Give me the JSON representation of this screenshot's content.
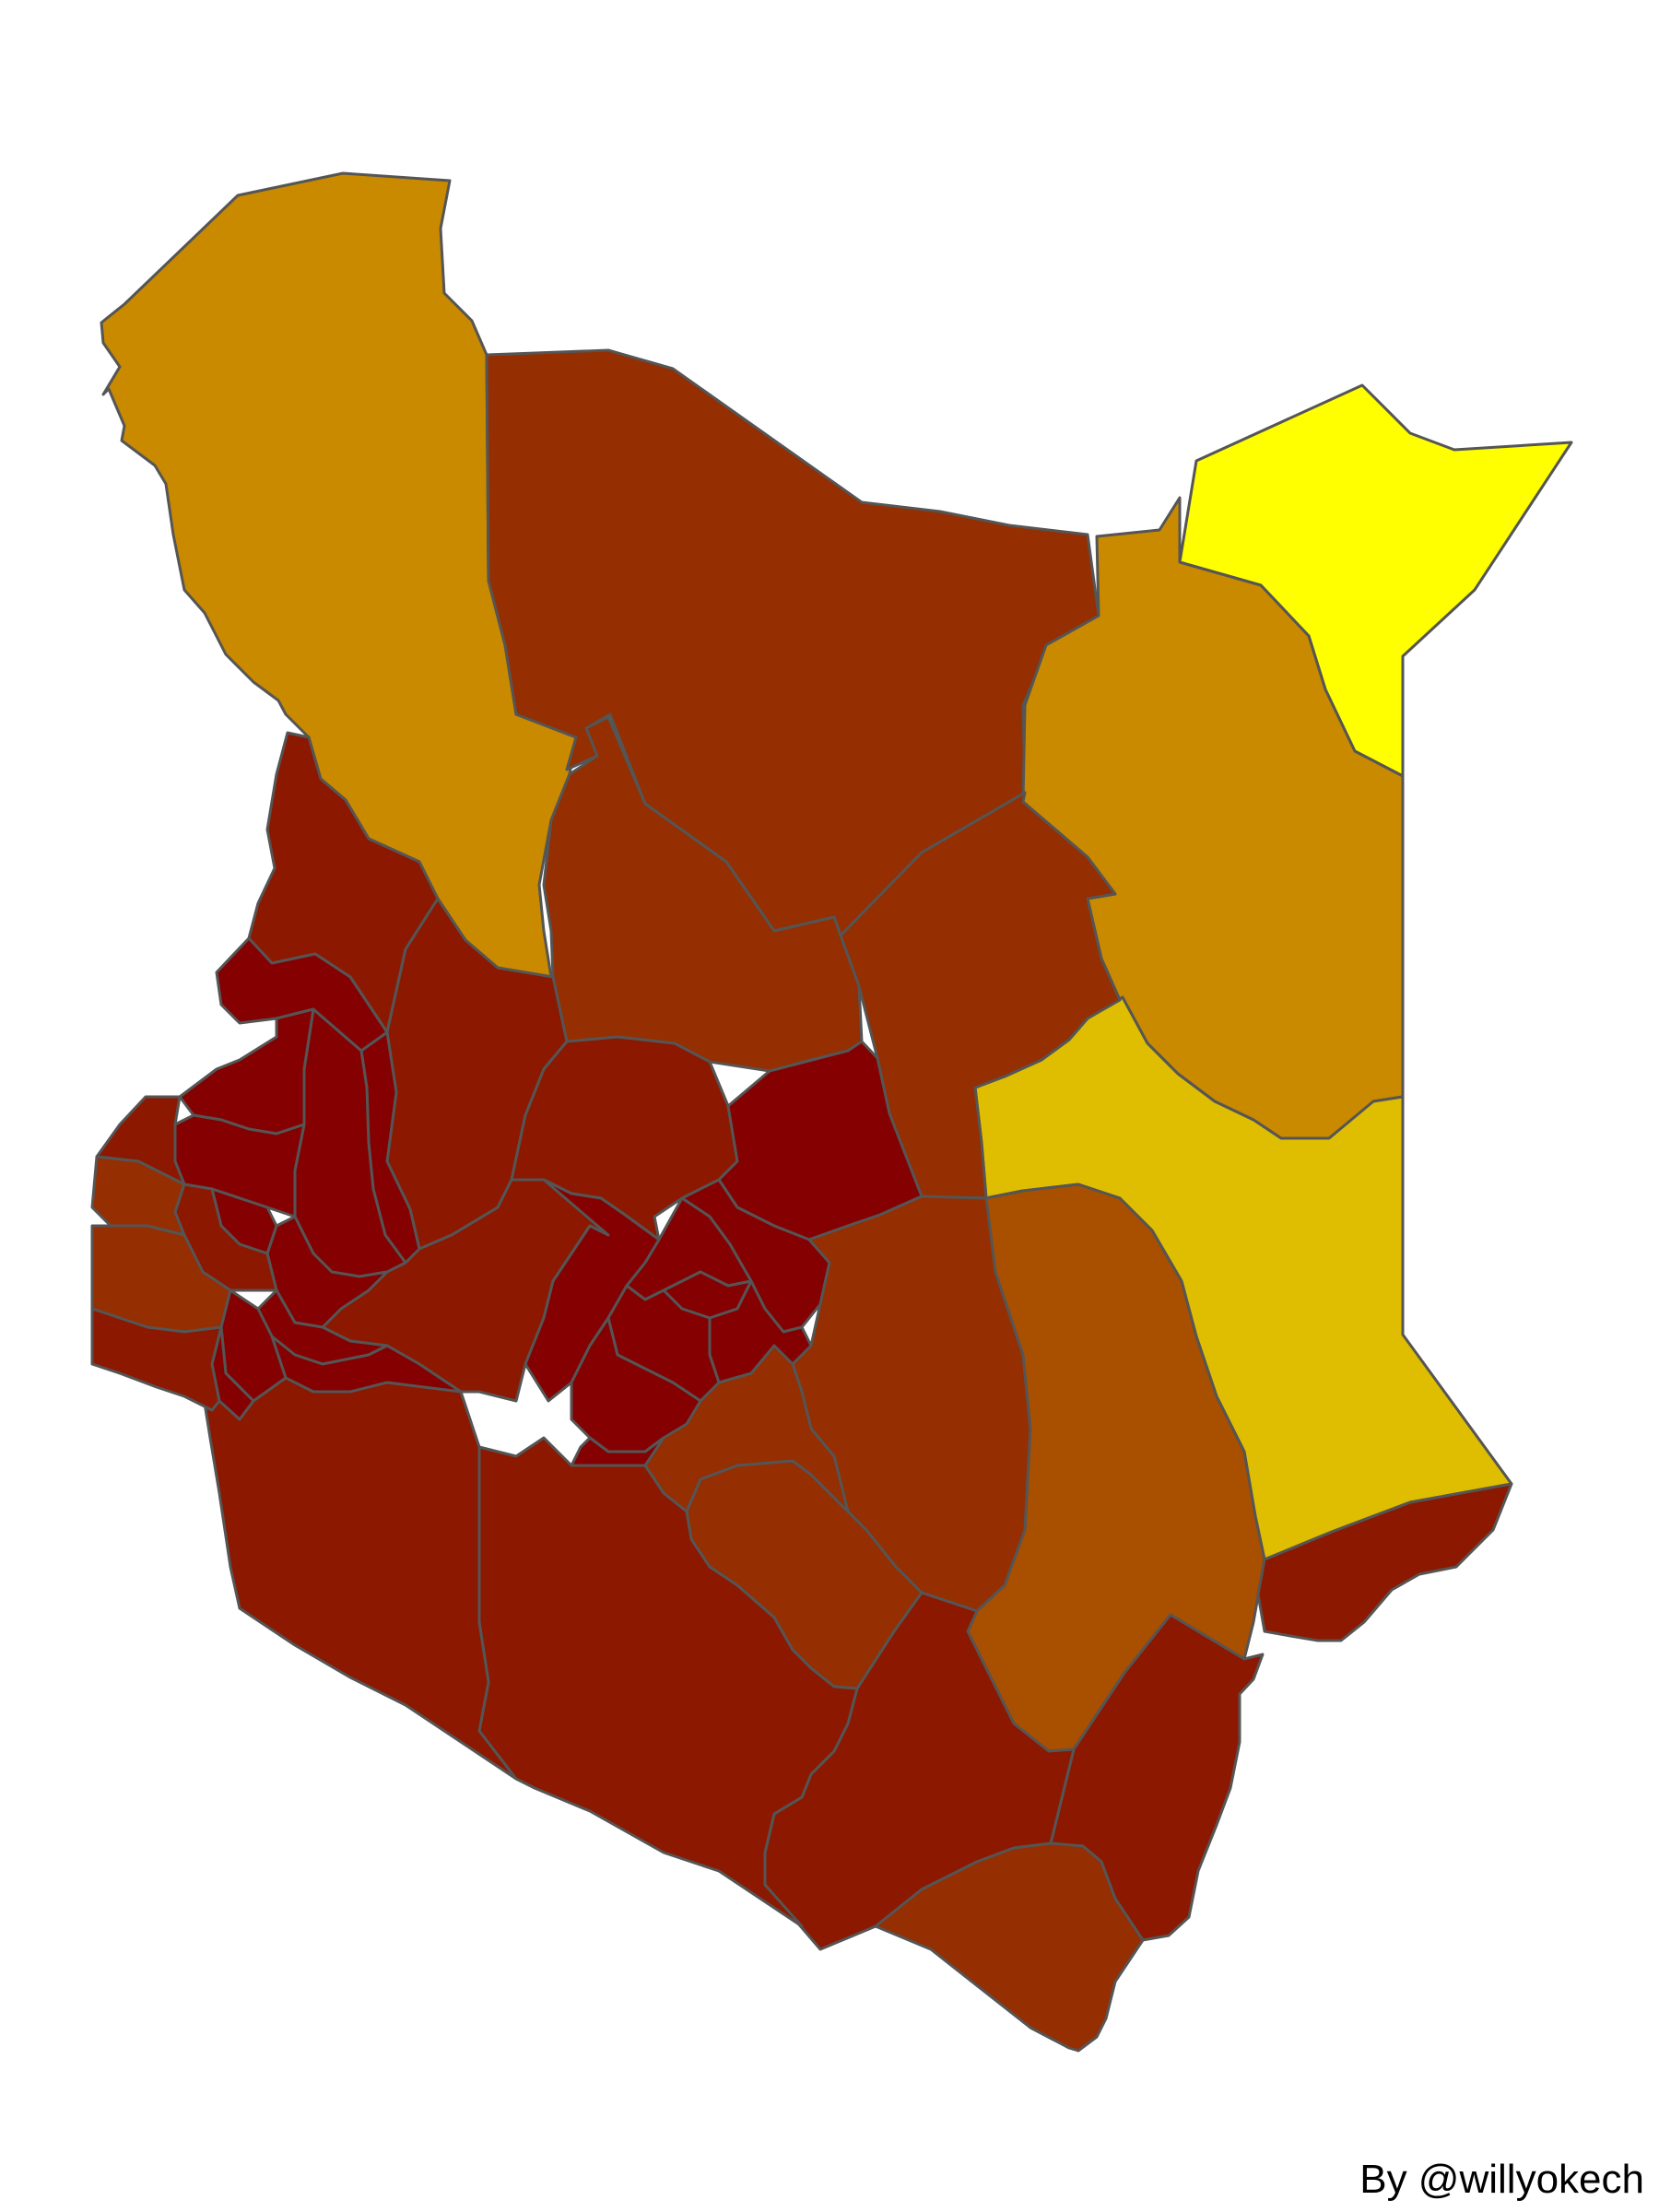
{
  "map": {
    "colors": {
      "yellow": "#ffff00",
      "gold": "#dfbd00",
      "ochre": "#c98a00",
      "orange_brown": "#a94f00",
      "rust": "#952e00",
      "red_brown": "#8c1800",
      "dark_red": "#850000",
      "border": "#555555",
      "background": "#ffffff"
    },
    "counties": [
      {
        "id": "turkana",
        "color": "ochre"
      },
      {
        "id": "marsabit",
        "color": "rust"
      },
      {
        "id": "mandera",
        "color": "yellow"
      },
      {
        "id": "wajir",
        "color": "ochre"
      },
      {
        "id": "garissa",
        "color": "gold"
      },
      {
        "id": "isiolo",
        "color": "rust"
      },
      {
        "id": "samburu",
        "color": "rust"
      },
      {
        "id": "west-pokot",
        "color": "red_brown"
      },
      {
        "id": "baringo",
        "color": "red_brown"
      },
      {
        "id": "laikipia",
        "color": "red_brown"
      },
      {
        "id": "meru",
        "color": "dark_red"
      },
      {
        "id": "tharaka-nithi",
        "color": "dark_red"
      },
      {
        "id": "kitui",
        "color": "rust"
      },
      {
        "id": "tana-river",
        "color": "orange_brown"
      },
      {
        "id": "lamu",
        "color": "red_brown"
      },
      {
        "id": "kilifi",
        "color": "red_brown"
      },
      {
        "id": "taita-taveta",
        "color": "red_brown"
      },
      {
        "id": "kwale",
        "color": "rust"
      },
      {
        "id": "makueni",
        "color": "rust"
      },
      {
        "id": "machakos",
        "color": "rust"
      },
      {
        "id": "kajiado",
        "color": "red_brown"
      },
      {
        "id": "narok",
        "color": "red_brown"
      },
      {
        "id": "nakuru",
        "color": "red_brown"
      },
      {
        "id": "nyandarua",
        "color": "dark_red"
      },
      {
        "id": "nyeri",
        "color": "dark_red"
      },
      {
        "id": "kirinyaga",
        "color": "dark_red"
      },
      {
        "id": "embu",
        "color": "dark_red"
      },
      {
        "id": "muranga",
        "color": "dark_red"
      },
      {
        "id": "kiambu",
        "color": "dark_red"
      },
      {
        "id": "nairobi",
        "color": "dark_red"
      },
      {
        "id": "elgeyo-marakwet",
        "color": "dark_red"
      },
      {
        "id": "uasin-gishu",
        "color": "dark_red"
      },
      {
        "id": "trans-nzoia",
        "color": "dark_red"
      },
      {
        "id": "nandi",
        "color": "dark_red"
      },
      {
        "id": "kericho",
        "color": "dark_red"
      },
      {
        "id": "bomet",
        "color": "dark_red"
      },
      {
        "id": "kakamega",
        "color": "dark_red"
      },
      {
        "id": "vihiga",
        "color": "dark_red"
      },
      {
        "id": "bungoma",
        "color": "dark_red"
      },
      {
        "id": "busia",
        "color": "red_brown"
      },
      {
        "id": "siaya",
        "color": "rust"
      },
      {
        "id": "kisumu",
        "color": "red_brown"
      },
      {
        "id": "homa-bay",
        "color": "rust"
      },
      {
        "id": "migori",
        "color": "red_brown"
      },
      {
        "id": "kisii",
        "color": "dark_red"
      },
      {
        "id": "nyamira",
        "color": "dark_red"
      }
    ]
  },
  "credit": "By @willyokech"
}
